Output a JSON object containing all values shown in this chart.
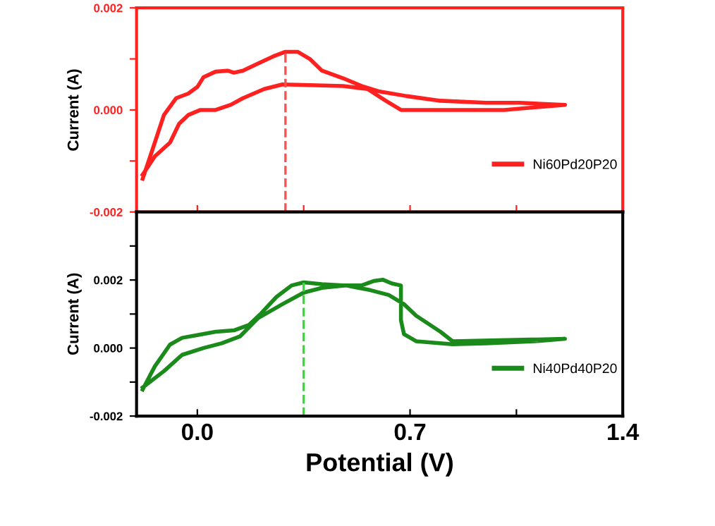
{
  "chart_data": [
    {
      "type": "line",
      "ylabel": "Current (A)",
      "xlim": [
        -0.2,
        1.4
      ],
      "ylim": [
        -0.002,
        0.002
      ],
      "xticks": [
        {
          "value": 0,
          "label": null
        },
        {
          "value": 0.35,
          "label": null
        },
        {
          "value": 0.7,
          "label": null
        },
        {
          "value": 1.05,
          "label": null
        }
      ],
      "yticks": [
        {
          "value": -0.002,
          "label": "-0.002"
        },
        {
          "value": -0.001,
          "label": null
        },
        {
          "value": 0,
          "label": "0.000"
        },
        {
          "value": 0.001,
          "label": null
        },
        {
          "value": 0.002,
          "label": "0.002"
        }
      ],
      "tick_labels": "y",
      "legend": "bottom right",
      "grid": false,
      "marker": "none",
      "series": [
        {
          "name": "Ni60Pd20P20",
          "color": "#ff2020",
          "line_style": "solid",
          "x": [
            -0.18,
            -0.15,
            -0.11,
            -0.07,
            -0.03,
            0.0,
            0.02,
            0.06,
            0.1,
            0.12,
            0.15,
            0.2,
            0.25,
            0.29,
            0.33,
            0.37,
            0.41,
            0.48,
            0.54,
            0.6,
            0.69,
            0.8,
            0.95,
            1.06,
            1.21,
            1.01,
            0.86,
            0.67,
            0.62,
            0.56,
            0.48,
            0.35,
            0.28,
            0.22,
            0.15,
            0.11,
            0.06,
            0.01,
            -0.03,
            -0.06,
            -0.09,
            -0.14,
            -0.18
          ],
          "values": [
            -0.00135,
            -0.00082,
            -0.0001,
            0.00023,
            0.00032,
            0.00045,
            0.00064,
            0.00075,
            0.00077,
            0.00073,
            0.00077,
            0.00091,
            0.00105,
            0.00114,
            0.00114,
            0.001,
            0.00077,
            0.00062,
            0.00047,
            0.00036,
            0.00027,
            0.00018,
            0.00014,
            0.00014,
            0.0001,
            0,
            0,
            0,
            0.00018,
            0.00041,
            0.00047,
            0.00049,
            0.0005,
            0.00041,
            0.00023,
            0.0001,
            0,
            0,
            -0.0001,
            -0.00027,
            -0.00064,
            -0.00091,
            -0.00127
          ]
        },
        {
          "color": "#ff5050",
          "line_style": "dashed",
          "x": [
            0.29,
            0.29
          ],
          "values": [
            -0.002,
            0.00114
          ]
        }
      ]
    },
    {
      "type": "line",
      "xlabel": "Potential (V)",
      "ylabel": "Current (A)",
      "xlim": [
        -0.2,
        1.4
      ],
      "ylim": [
        -0.002,
        0.004
      ],
      "xticks": [
        {
          "value": 0,
          "label": "0.0"
        },
        {
          "value": 0.35,
          "label": null
        },
        0.7,
        {
          "value": 1.05,
          "label": null
        },
        1.4
      ],
      "yticks": [
        {
          "value": -0.002,
          "label": "-0.002"
        },
        {
          "value": -0.001,
          "label": null
        },
        {
          "value": 0,
          "label": "0.000"
        },
        {
          "value": 0.001,
          "label": null
        },
        {
          "value": 0.002,
          "label": "0.002"
        },
        {
          "value": 0.003,
          "label": null
        }
      ],
      "legend": "bottom right",
      "grid": false,
      "marker": "none",
      "series": [
        {
          "name": "Ni40Pd40P20",
          "color": "#1a8a1a",
          "line_style": "solid",
          "x": [
            -0.18,
            -0.14,
            -0.09,
            -0.05,
            0.0,
            0.06,
            0.12,
            0.17,
            0.21,
            0.26,
            0.31,
            0.35,
            0.41,
            0.48,
            0.54,
            0.58,
            0.61,
            0.64,
            0.67,
            0.67,
            0.68,
            0.72,
            0.84,
            0.95,
            1.11,
            1.21,
            0.84,
            0.8,
            0.72,
            0.68,
            0.63,
            0.57,
            0.49,
            0.41,
            0.35,
            0.28,
            0.2,
            0.14,
            0.08,
            0.02,
            -0.05,
            -0.11,
            -0.18
          ],
          "values": [
            -0.00122,
            -0.00054,
            0.0001,
            0.0003,
            0.00038,
            0.00048,
            0.00052,
            0.00068,
            0.00102,
            0.0015,
            0.00184,
            0.00193,
            0.00188,
            0.00184,
            0.00184,
            0.00197,
            0.00201,
            0.0019,
            0.00184,
            0.00082,
            0.00041,
            0.0002,
            0.00011,
            0.00014,
            0.0002,
            0.00027,
            0.0002,
            0.00048,
            0.00095,
            0.00129,
            0.00156,
            0.0017,
            0.00184,
            0.00177,
            0.00163,
            0.00129,
            0.00088,
            0.00034,
            0.00014,
            0,
            -0.0002,
            -0.00068,
            -0.00116
          ]
        },
        {
          "color": "#33dd33",
          "line_style": "dashed",
          "x": [
            0.35,
            0.35
          ],
          "values": [
            -0.002,
            0.00193
          ]
        }
      ]
    }
  ]
}
